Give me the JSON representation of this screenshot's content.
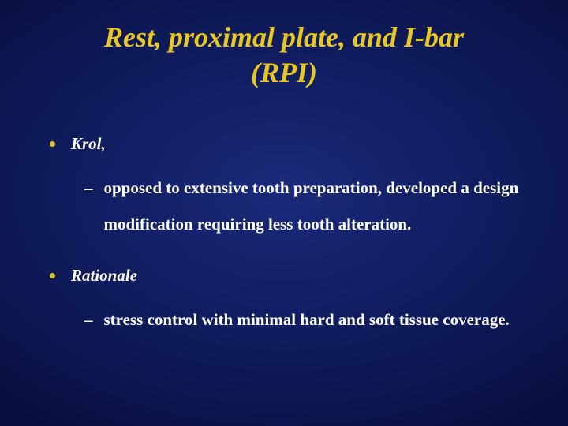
{
  "title_line1": "Rest, proximal plate, and I-bar",
  "title_line2": "(RPI)",
  "colors": {
    "title_color": "#e8c820",
    "bullet_dot": "#d8c028",
    "text_color": "#ffffff"
  },
  "bullets": [
    {
      "label": "Krol,",
      "sub": "opposed to  extensive tooth preparation, developed a design modification requiring less tooth alteration."
    },
    {
      "label": "Rationale",
      "sub": "stress control with minimal hard and soft tissue coverage."
    }
  ]
}
